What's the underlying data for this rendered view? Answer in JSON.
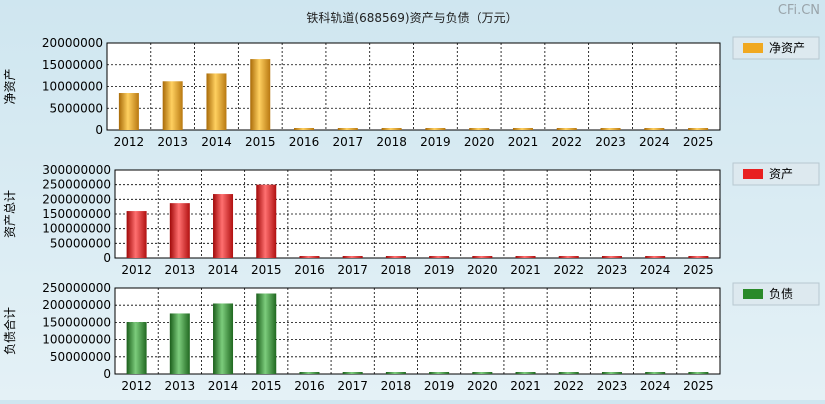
{
  "title": "铁科轨道(688569)资产与负债（万元）",
  "watermark": "CFi.CN",
  "chart_data": [
    {
      "type": "bar",
      "ylabel": "净资产",
      "legend": "净资产",
      "legend_position": "right",
      "color": "#f0a820",
      "categories": [
        "2012",
        "2013",
        "2014",
        "2015",
        "2016",
        "2017",
        "2018",
        "2019",
        "2020",
        "2021",
        "2022",
        "2023",
        "2024",
        "2025"
      ],
      "values": [
        8500000,
        11200000,
        13000000,
        16300000,
        0,
        0,
        0,
        0,
        0,
        0,
        0,
        0,
        0,
        0
      ],
      "ylim": [
        0,
        20000000
      ],
      "yticks": [
        "0",
        "5000000",
        "10000000",
        "15000000",
        "20000000"
      ],
      "grid": true
    },
    {
      "type": "bar",
      "ylabel": "资产总计",
      "legend": "资产",
      "legend_position": "right",
      "color": "#e82020",
      "categories": [
        "2012",
        "2013",
        "2014",
        "2015",
        "2016",
        "2017",
        "2018",
        "2019",
        "2020",
        "2021",
        "2022",
        "2023",
        "2024",
        "2025"
      ],
      "values": [
        160000000,
        187000000,
        218000000,
        250000000,
        0,
        0,
        0,
        0,
        0,
        0,
        0,
        0,
        0,
        0
      ],
      "ylim": [
        0,
        300000000
      ],
      "yticks": [
        "0",
        "50000000",
        "100000000",
        "150000000",
        "200000000",
        "250000000",
        "300000000"
      ],
      "grid": true
    },
    {
      "type": "bar",
      "ylabel": "负债合计",
      "legend": "负债",
      "legend_position": "right",
      "color": "#2a8a2a",
      "categories": [
        "2012",
        "2013",
        "2014",
        "2015",
        "2016",
        "2017",
        "2018",
        "2019",
        "2020",
        "2021",
        "2022",
        "2023",
        "2024",
        "2025"
      ],
      "values": [
        151000000,
        176000000,
        205000000,
        234000000,
        0,
        0,
        0,
        0,
        0,
        0,
        0,
        0,
        0,
        0
      ],
      "ylim": [
        0,
        250000000
      ],
      "yticks": [
        "0",
        "50000000",
        "100000000",
        "150000000",
        "200000000",
        "250000000"
      ],
      "grid": true
    }
  ]
}
